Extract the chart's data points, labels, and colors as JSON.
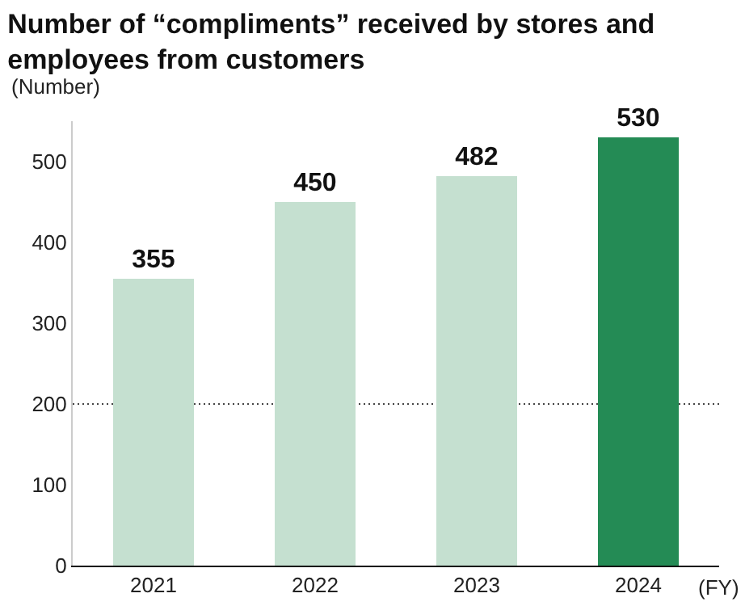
{
  "chart_data": {
    "type": "bar",
    "title": "Number of “compliments” received by stores and\nemployees from customers",
    "ylabel": "(Number)",
    "xlabel": "(FY)",
    "categories": [
      "2021",
      "2022",
      "2023",
      "2024"
    ],
    "values": [
      355,
      450,
      482,
      530
    ],
    "colors": [
      "#c5e0d0",
      "#c5e0d0",
      "#c5e0d0",
      "#248b55"
    ],
    "data_labels": true,
    "ylim": [
      0,
      550
    ],
    "yticks": [
      0,
      100,
      200,
      300,
      400,
      500
    ],
    "grid": false,
    "ref_lines": [
      {
        "axis": "y",
        "value": 200,
        "line_style": "dotted",
        "color": "#444444"
      }
    ]
  }
}
